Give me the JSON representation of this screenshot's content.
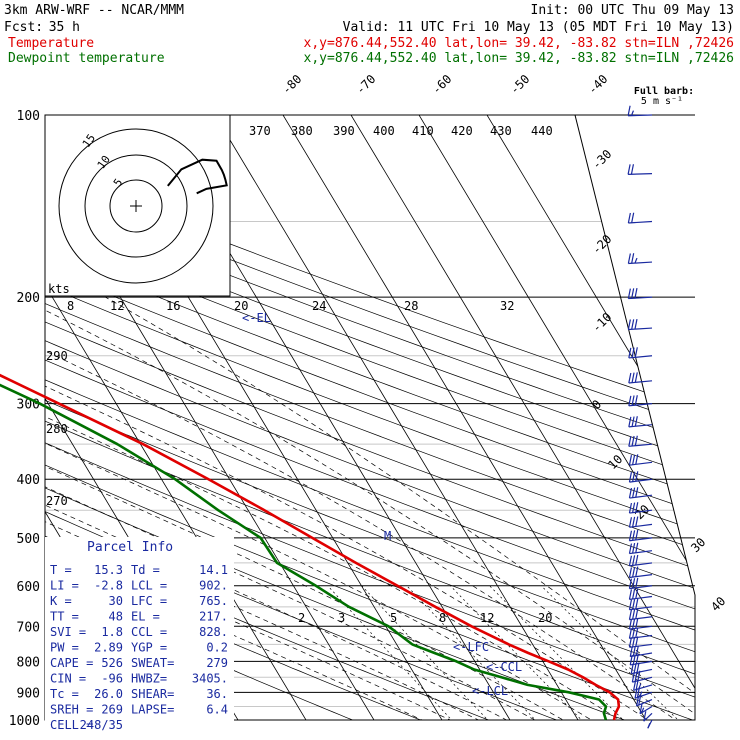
{
  "header": {
    "model": "3km ARW-WRF -- NCAR/MMM",
    "init": "Init: 00 UTC Thu 09 May 13",
    "fcst_label": "Fcst:",
    "fcst_value": "35 h",
    "valid": "Valid: 11 UTC Fri 10 May 13 (05 MDT Fri 10 May 13)",
    "temp_label": "Temperature",
    "dew_label": "Dewpoint temperature",
    "loc_text": "x,y=876.44,552.40   lat,lon= 39.42, -83.82   stn=ILN ,72426"
  },
  "colors": {
    "temperature": "#e00000",
    "dewpoint": "#007000",
    "annotation": "#1a2aa0"
  },
  "barb_legend": {
    "line1": "Full barb:",
    "line2": "5 m s⁻¹"
  },
  "hodograph": {
    "kts_label": "kts",
    "rings": [
      "5",
      "10",
      "15"
    ]
  },
  "pinfo": {
    "title": "Parcel Info",
    "rows": [
      [
        "T   =",
        "15.3",
        "Td  =",
        "14.1"
      ],
      [
        "LI  =",
        "-2.8",
        "LCL =",
        "902."
      ],
      [
        "K   =",
        "30",
        "LFC =",
        "765."
      ],
      [
        "TT  =",
        "48",
        "EL  =",
        "217."
      ],
      [
        "SVI =",
        "1.8",
        "CCL =",
        "828."
      ],
      [
        "PW  =",
        "2.89",
        "YGP =",
        "0.2"
      ],
      [
        "CAPE =",
        "526",
        "SWEAT=",
        "279"
      ],
      [
        "CIN  =",
        "-96",
        "HWBZ=",
        "3405."
      ],
      [
        "Tc  =",
        "26.0",
        "SHEAR=",
        "36."
      ],
      [
        "SREH =",
        "269",
        "LAPSE=",
        "6.4"
      ],
      [
        "CELL =",
        "248/35",
        "",
        ""
      ]
    ]
  },
  "levels": {
    "el": "<-EL",
    "lfc": "<-LFC",
    "ccl": "<-CCL",
    "lcl": "<-LCL",
    "m": "M"
  },
  "chart_data": {
    "type": "skew-t",
    "p_axis": [
      100,
      200,
      300,
      400,
      500,
      600,
      700,
      800,
      900,
      1000
    ],
    "p_axis_labels": [
      "100",
      "200",
      "300",
      "400",
      "500",
      "600",
      "700",
      "800",
      "900",
      "1000"
    ],
    "isotherm_labels": [
      "-80",
      "-70",
      "-60",
      "-50",
      "-40",
      "-30",
      "-20",
      "-10",
      "0",
      "10",
      "20",
      "30",
      "40"
    ],
    "theta_labels": [
      "370",
      "380",
      "390",
      "400",
      "410",
      "420",
      "430",
      "440",
      "290",
      "280",
      "270"
    ],
    "mixing_ratio_labels": [
      "8",
      "12",
      "16",
      "20",
      "24",
      "28",
      "32",
      "2",
      "3",
      "5",
      "8",
      "12",
      "20"
    ],
    "temperature": {
      "name": "Temperature",
      "p": [
        1000,
        975,
        950,
        925,
        900,
        875,
        850,
        825,
        800,
        775,
        750,
        700,
        650,
        600,
        550,
        500,
        450,
        400,
        350,
        300,
        250,
        225,
        200,
        190,
        175,
        150,
        125,
        110,
        100
      ],
      "t": [
        15.3,
        16.1,
        17.2,
        17.7,
        17.1,
        15.7,
        14.5,
        13.0,
        10.9,
        8.6,
        6.5,
        2.6,
        -1.0,
        -4.7,
        -8.8,
        -13.0,
        -17.6,
        -23.1,
        -29.6,
        -38.4,
        -48.8,
        -54.2,
        -60.1,
        -62.4,
        -64.0,
        -64.8,
        -65.1,
        -65.9,
        -66.6
      ]
    },
    "dewpoint": {
      "name": "Dewpoint temperature",
      "p": [
        1000,
        975,
        950,
        925,
        900,
        875,
        850,
        825,
        800,
        775,
        750,
        700,
        650,
        600,
        550,
        500,
        450,
        400,
        350,
        300,
        250,
        225,
        200,
        175,
        150,
        125,
        110,
        100
      ],
      "t": [
        14.1,
        14.4,
        15.3,
        14.9,
        11.1,
        5.7,
        2.5,
        -0.8,
        -2.7,
        -5.2,
        -7.7,
        -9.6,
        -13.7,
        -16.7,
        -20.4,
        -20.6,
        -24.4,
        -28.0,
        -33.4,
        -41.2,
        -52.1,
        -58.6,
        -67.9,
        -70.1,
        -71.2,
        -73.8,
        -78.8,
        -80.2
      ]
    },
    "wind_barbs": {
      "p": [
        1000,
        975,
        950,
        925,
        900,
        875,
        850,
        825,
        800,
        775,
        750,
        725,
        700,
        675,
        650,
        625,
        600,
        575,
        550,
        525,
        500,
        475,
        450,
        425,
        400,
        375,
        350,
        325,
        300,
        275,
        250,
        225,
        200,
        175,
        150,
        125,
        100
      ],
      "dir": [
        190,
        200,
        210,
        220,
        225,
        230,
        235,
        240,
        245,
        245,
        250,
        250,
        250,
        250,
        250,
        250,
        250,
        250,
        250,
        250,
        250,
        250,
        250,
        250,
        250,
        250,
        255,
        255,
        255,
        255,
        255,
        260,
        260,
        260,
        260,
        265,
        265
      ],
      "spd": [
        5,
        10,
        15,
        20,
        25,
        25,
        30,
        30,
        30,
        30,
        30,
        30,
        30,
        30,
        30,
        30,
        30,
        30,
        30,
        30,
        30,
        30,
        30,
        30,
        30,
        30,
        30,
        30,
        30,
        30,
        30,
        30,
        30,
        25,
        20,
        20,
        15
      ]
    }
  }
}
